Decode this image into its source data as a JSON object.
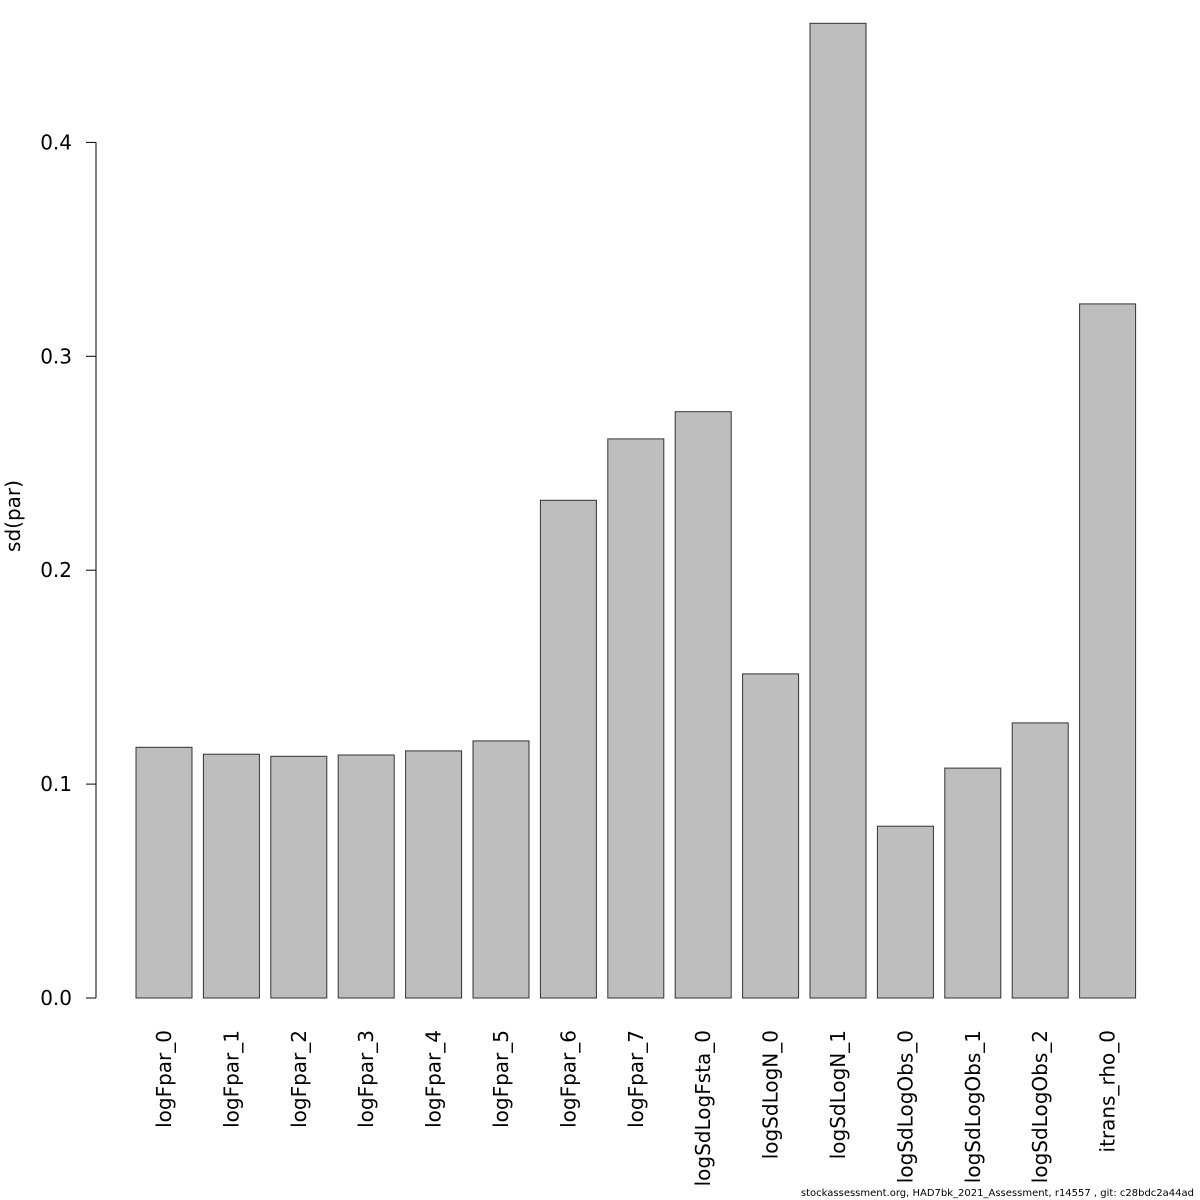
{
  "chart_data": {
    "type": "bar",
    "title": "",
    "xlabel": "",
    "ylabel": "sd(par)",
    "ylim": [
      0,
      0.45
    ],
    "yticks": [
      0.0,
      0.1,
      0.2,
      0.3,
      0.4
    ],
    "ytick_labels": [
      "0.0",
      "0.1",
      "0.2",
      "0.3",
      "0.4"
    ],
    "grid": false,
    "bar_color": "#bebebe",
    "categories": [
      "logFpar_0",
      "logFpar_1",
      "logFpar_2",
      "logFpar_3",
      "logFpar_4",
      "logFpar_5",
      "logFpar_6",
      "logFpar_7",
      "logSdLogFsta_0",
      "logSdLogN_0",
      "logSdLogN_1",
      "logSdLogObs_0",
      "logSdLogObs_1",
      "logSdLogObs_2",
      "itrans_rho_0"
    ],
    "values": [
      0.1172,
      0.114,
      0.113,
      0.1136,
      0.1155,
      0.1202,
      0.2327,
      0.2614,
      0.2741,
      0.1515,
      0.4557,
      0.0803,
      0.1075,
      0.1286,
      0.3245
    ]
  },
  "footer": "stockassessment.org, HAD7bk_2021_Assessment, r14557 , git: c28bdc2a44ad"
}
